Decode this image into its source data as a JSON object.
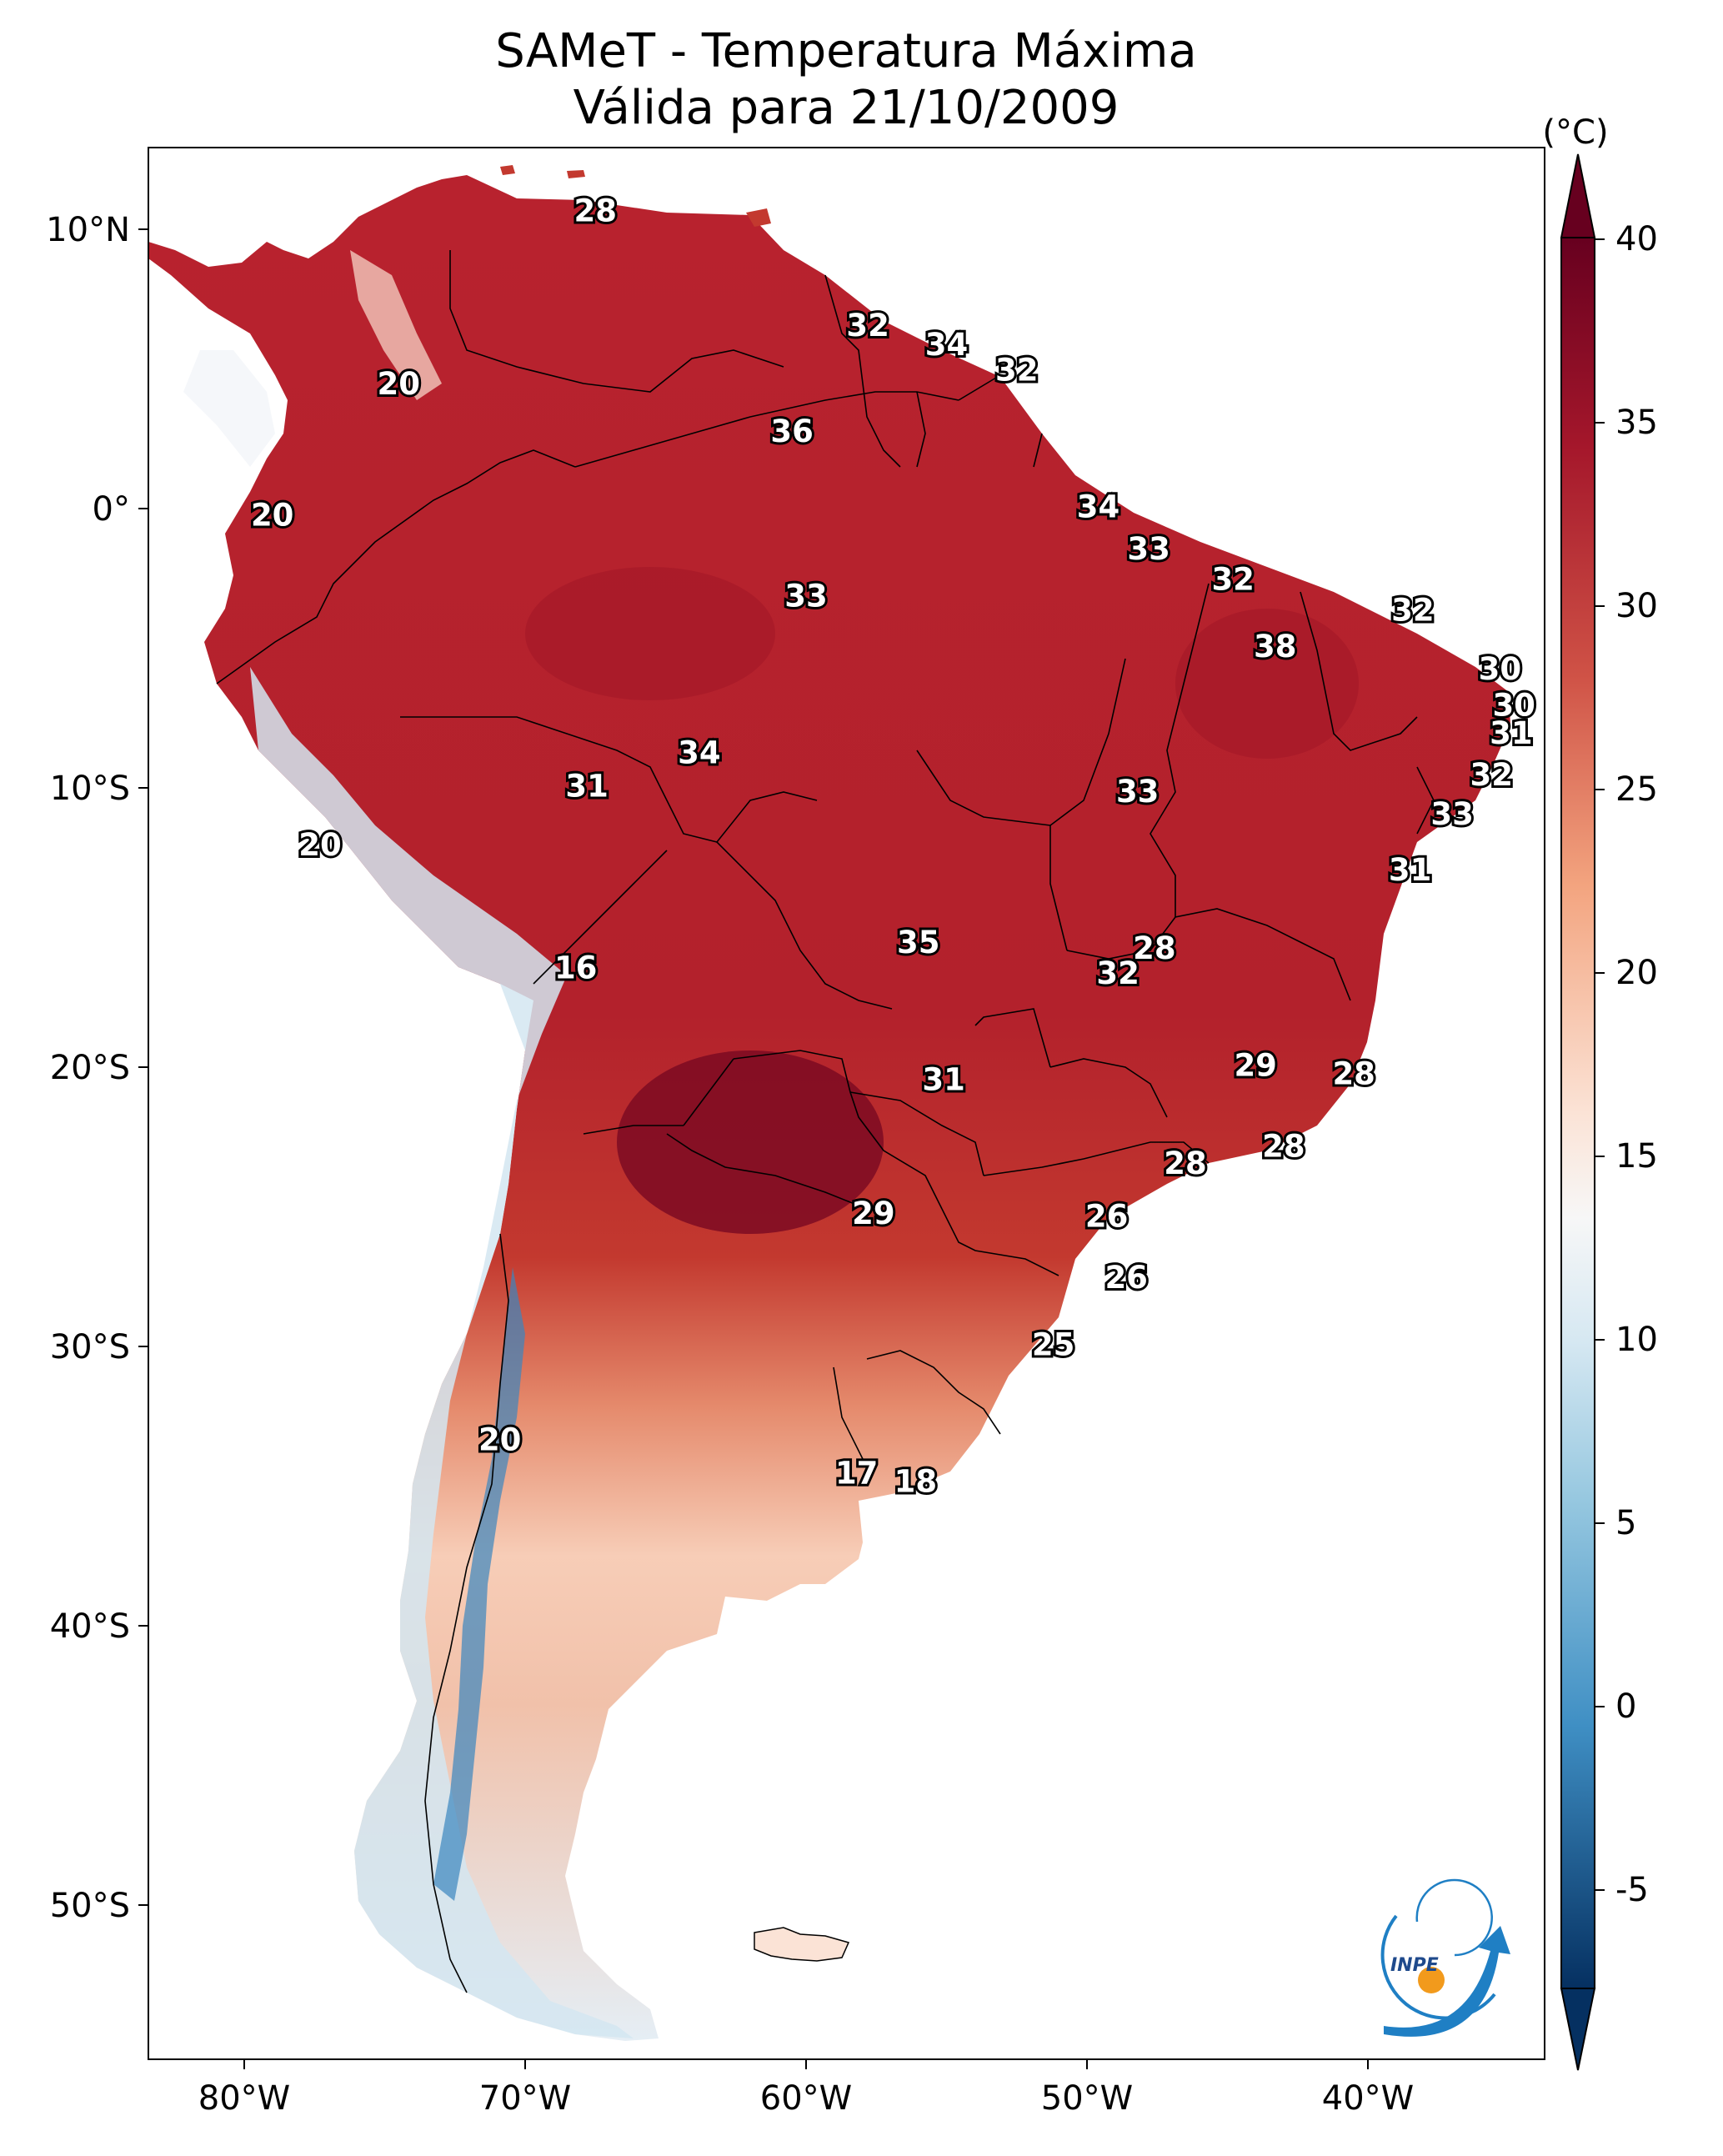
{
  "title": {
    "line1": "SAMeT - Temperatura Máxima",
    "line2": "Válida para 21/10/2009"
  },
  "map": {
    "lon_ticks": [
      "80°W",
      "70°W",
      "60°W",
      "50°W",
      "40°W"
    ],
    "lat_ticks": [
      "10°N",
      "0°",
      "10°S",
      "20°S",
      "30°S",
      "40°S",
      "50°S"
    ]
  },
  "colorbar": {
    "unit": "(°C)",
    "tick_labels": [
      "40",
      "35",
      "30",
      "25",
      "20",
      "15",
      "10",
      "5",
      "0",
      "-5"
    ],
    "min": -5,
    "max": 40,
    "colors_top_to_bottom": [
      "#67001f",
      "#b2182b",
      "#d6604d",
      "#f4a582",
      "#fddbc7",
      "#f7f7f7",
      "#d1e5f0",
      "#92c5de",
      "#4393c3",
      "#2166ac",
      "#053061"
    ],
    "extend": "both"
  },
  "logo": {
    "text": "INPE",
    "colors": {
      "blue": "#1f7fc4",
      "orange": "#f29a1c"
    }
  },
  "station_labels": [
    {
      "v": "28",
      "lon": -67.5,
      "lat": 10.6
    },
    {
      "v": "32",
      "lon": -57.8,
      "lat": 6.5
    },
    {
      "v": "34",
      "lon": -55.0,
      "lat": 5.8
    },
    {
      "v": "32",
      "lon": -52.5,
      "lat": 4.9
    },
    {
      "v": "20",
      "lon": -74.5,
      "lat": 4.4
    },
    {
      "v": "36",
      "lon": -60.5,
      "lat": 2.7
    },
    {
      "v": "20",
      "lon": -79.0,
      "lat": -0.3
    },
    {
      "v": "34",
      "lon": -49.6,
      "lat": 0.0
    },
    {
      "v": "33",
      "lon": -47.8,
      "lat": -1.5
    },
    {
      "v": "32",
      "lon": -44.8,
      "lat": -2.6
    },
    {
      "v": "33",
      "lon": -60.0,
      "lat": -3.2
    },
    {
      "v": "32",
      "lon": -38.4,
      "lat": -3.7
    },
    {
      "v": "38",
      "lon": -43.3,
      "lat": -5.0
    },
    {
      "v": "30",
      "lon": -35.3,
      "lat": -5.8
    },
    {
      "v": "30",
      "lon": -34.8,
      "lat": -7.1
    },
    {
      "v": "31",
      "lon": -34.9,
      "lat": -8.1
    },
    {
      "v": "34",
      "lon": -63.8,
      "lat": -8.8
    },
    {
      "v": "32",
      "lon": -35.6,
      "lat": -9.6
    },
    {
      "v": "31",
      "lon": -67.8,
      "lat": -10.0
    },
    {
      "v": "33",
      "lon": -48.2,
      "lat": -10.2
    },
    {
      "v": "33",
      "lon": -37.0,
      "lat": -11.0
    },
    {
      "v": "20",
      "lon": -77.3,
      "lat": -12.1
    },
    {
      "v": "31",
      "lon": -38.5,
      "lat": -13.0
    },
    {
      "v": "35",
      "lon": -56.0,
      "lat": -15.6
    },
    {
      "v": "28",
      "lon": -47.6,
      "lat": -15.8
    },
    {
      "v": "16",
      "lon": -68.2,
      "lat": -16.5
    },
    {
      "v": "32",
      "lon": -48.9,
      "lat": -16.7
    },
    {
      "v": "29",
      "lon": -44.0,
      "lat": -20.0
    },
    {
      "v": "28",
      "lon": -40.5,
      "lat": -20.3
    },
    {
      "v": "31",
      "lon": -55.1,
      "lat": -20.5
    },
    {
      "v": "28",
      "lon": -43.0,
      "lat": -22.9
    },
    {
      "v": "28",
      "lon": -46.5,
      "lat": -23.5
    },
    {
      "v": "29",
      "lon": -57.6,
      "lat": -25.3
    },
    {
      "v": "26",
      "lon": -49.3,
      "lat": -25.4
    },
    {
      "v": "26",
      "lon": -48.6,
      "lat": -27.6
    },
    {
      "v": "25",
      "lon": -51.2,
      "lat": -30.0
    },
    {
      "v": "20",
      "lon": -70.9,
      "lat": -33.4
    },
    {
      "v": "17",
      "lon": -58.2,
      "lat": -34.6
    },
    {
      "v": "18",
      "lon": -56.1,
      "lat": -34.9
    }
  ]
}
